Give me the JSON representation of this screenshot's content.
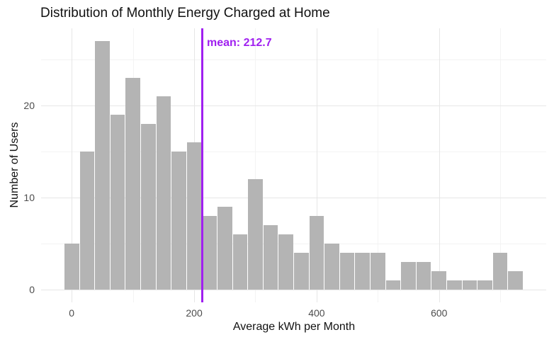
{
  "chart_data": {
    "type": "bar",
    "subtype": "histogram",
    "title": "Distribution of Monthly Energy Charged at Home",
    "xlabel": "Average kWh per Month",
    "ylabel": "Number of Users",
    "bin_width": 25,
    "bin_centers": [
      0,
      25,
      50,
      75,
      100,
      125,
      150,
      175,
      200,
      225,
      250,
      275,
      300,
      325,
      350,
      375,
      400,
      425,
      450,
      475,
      500,
      525,
      550,
      575,
      600,
      625,
      650,
      675,
      700,
      725
    ],
    "counts": [
      5,
      15,
      27,
      19,
      23,
      18,
      21,
      15,
      16,
      8,
      9,
      6,
      12,
      7,
      6,
      4,
      8,
      5,
      4,
      4,
      4,
      1,
      3,
      3,
      2,
      1,
      1,
      1,
      4,
      2
    ],
    "mean": 212.7,
    "mean_label": "mean: 212.7",
    "x_major_ticks": [
      0,
      200,
      400,
      600
    ],
    "x_minor_gridlines": [
      100,
      300,
      500,
      700
    ],
    "y_major_ticks": [
      0,
      10,
      20
    ],
    "y_minor_gridlines": [
      5,
      15,
      25
    ],
    "xlim": [
      -50,
      775
    ],
    "ylim": [
      -1.35,
      28.35
    ],
    "grid": "on",
    "legend": "none",
    "colors": {
      "bar_fill": "#b4b4b4",
      "bar_separator": "#ffffff",
      "mean_line": "#a020f0",
      "mean_text": "#a020f0",
      "grid_major": "#e6e6e6",
      "grid_minor": "#f3f3f3",
      "tick_label": "#4d4d4d",
      "title_text": "#111111",
      "background": "#ffffff"
    }
  }
}
